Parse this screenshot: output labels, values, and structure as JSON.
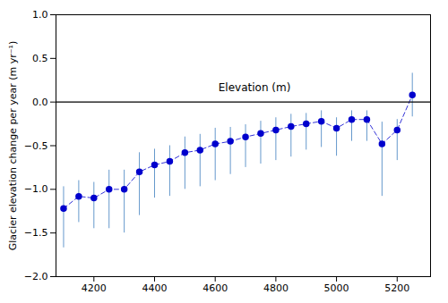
{
  "chart_data": {
    "type": "scatter",
    "x": [
      4100,
      4150,
      4200,
      4250,
      4300,
      4350,
      4400,
      4450,
      4500,
      4550,
      4600,
      4650,
      4700,
      4750,
      4800,
      4850,
      4900,
      4950,
      5000,
      5050,
      5100,
      5150,
      5200,
      5250
    ],
    "values": [
      -1.22,
      -1.08,
      -1.1,
      -1.0,
      -1.0,
      -0.8,
      -0.72,
      -0.68,
      -0.58,
      -0.55,
      -0.48,
      -0.45,
      -0.4,
      -0.36,
      -0.32,
      -0.28,
      -0.25,
      -0.22,
      -0.3,
      -0.2,
      -0.2,
      -0.48,
      -0.32,
      0.08
    ],
    "error_bars": {
      "low": [
        0.45,
        0.3,
        0.35,
        0.45,
        0.5,
        0.5,
        0.38,
        0.4,
        0.42,
        0.42,
        0.42,
        0.38,
        0.35,
        0.35,
        0.35,
        0.35,
        0.3,
        0.3,
        0.32,
        0.25,
        0.25,
        0.6,
        0.35,
        0.25
      ],
      "high": [
        0.25,
        0.18,
        0.18,
        0.22,
        0.22,
        0.22,
        0.18,
        0.18,
        0.18,
        0.18,
        0.18,
        0.16,
        0.14,
        0.14,
        0.14,
        0.14,
        0.12,
        0.12,
        0.12,
        0.1,
        0.1,
        0.25,
        0.12,
        0.25
      ],
      "color": "#6699CC"
    },
    "color": "#0000CD",
    "marker": "circle",
    "line_style": "dashed",
    "hline": 0,
    "ylabel": "Glacier elevation change per year (m yr⁻¹)",
    "annotations": [
      {
        "text": "Elevation (m)"
      }
    ],
    "xlim": [
      4075,
      5310
    ],
    "ylim": [
      -2.0,
      1.0
    ],
    "xticks": [
      4200,
      4400,
      4600,
      4800,
      5000,
      5200
    ],
    "yticks": [
      {
        "value": -2.0,
        "label": "−2.0"
      },
      {
        "value": -1.5,
        "label": "−1.5"
      },
      {
        "value": -1.0,
        "label": "−1.0"
      },
      {
        "value": -0.5,
        "label": "−0.5"
      },
      {
        "value": 0.0,
        "label": "0.0"
      },
      {
        "value": 0.5,
        "label": "0.5"
      },
      {
        "value": 1.0,
        "label": "1.0"
      }
    ],
    "grid": false
  }
}
